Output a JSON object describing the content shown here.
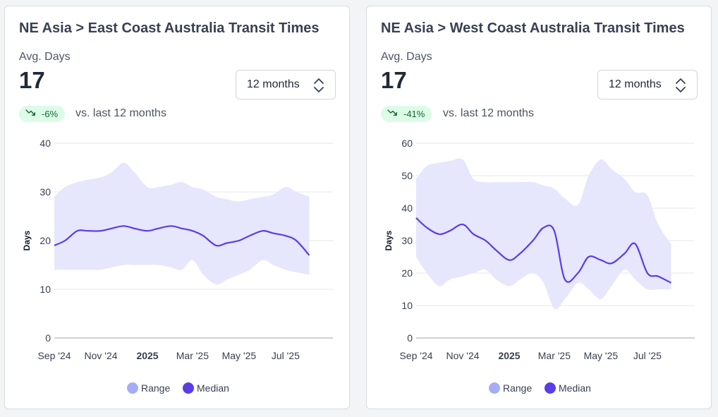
{
  "colors": {
    "range_fill": "#e6e6fd",
    "range_legend": "#a5adf8",
    "median": "#5b3ce6",
    "grid": "#e5e7eb",
    "badge_bg": "#dcfce7",
    "badge_text": "#166534"
  },
  "cards": [
    {
      "title": "NE Asia > East Coast Australia Transit Times",
      "metric_label": "Avg. Days",
      "metric_value": "17",
      "period_select": {
        "value": "12 months",
        "icon": "chevron-up-down-icon"
      },
      "change_badge": {
        "text": "-6%",
        "icon": "trending-down-icon"
      },
      "compare_text": "vs. last 12 months"
    },
    {
      "title": "NE Asia > West Coast Australia Transit Times",
      "metric_label": "Avg. Days",
      "metric_value": "17",
      "period_select": {
        "value": "12 months",
        "icon": "chevron-up-down-icon"
      },
      "change_badge": {
        "text": "-41%",
        "icon": "trending-down-icon"
      },
      "compare_text": "vs. last 12 months"
    }
  ],
  "chart_data": [
    {
      "type": "area",
      "ylabel": "Days",
      "ylim": [
        0,
        40
      ],
      "yticks": [
        0,
        10,
        20,
        30,
        40
      ],
      "xlim": [
        "2024-09-01",
        "2025-09-01"
      ],
      "xticks": [
        {
          "date": "2024-09-01",
          "label": "Sep '24",
          "bold": false
        },
        {
          "date": "2024-11-01",
          "label": "Nov '24",
          "bold": false
        },
        {
          "date": "2025-01-01",
          "label": "2025",
          "bold": true
        },
        {
          "date": "2025-03-01",
          "label": "Mar '25",
          "bold": false
        },
        {
          "date": "2025-05-01",
          "label": "May '25",
          "bold": false
        },
        {
          "date": "2025-07-01",
          "label": "Jul '25",
          "bold": false
        }
      ],
      "grid": true,
      "legend": {
        "position": "bottom",
        "entries": [
          "Range",
          "Median"
        ]
      },
      "x": [
        "2024-09-01",
        "2024-09-15",
        "2024-10-01",
        "2024-10-15",
        "2024-11-01",
        "2024-11-15",
        "2024-12-01",
        "2024-12-15",
        "2025-01-01",
        "2025-01-15",
        "2025-02-01",
        "2025-02-15",
        "2025-03-01",
        "2025-03-15",
        "2025-04-01",
        "2025-04-15",
        "2025-05-01",
        "2025-05-15",
        "2025-06-01",
        "2025-06-15",
        "2025-07-01",
        "2025-07-15",
        "2025-08-01"
      ],
      "series": [
        {
          "name": "Range",
          "type": "band",
          "low": [
            14,
            14,
            14,
            14,
            14,
            14.5,
            15,
            15,
            15,
            15,
            14.5,
            14,
            16,
            13,
            11,
            12,
            13,
            14,
            16,
            15,
            14,
            13.5,
            13
          ],
          "high": [
            29,
            31,
            32,
            32.5,
            33,
            34,
            36,
            34,
            31,
            31,
            31.5,
            32,
            31,
            30.5,
            29,
            28.5,
            28,
            28.5,
            29,
            29.5,
            31,
            30,
            29
          ]
        },
        {
          "name": "Median",
          "type": "line",
          "values": [
            19,
            20,
            22,
            22,
            22,
            22.5,
            23,
            22.5,
            22,
            22.5,
            23,
            22.5,
            22,
            21,
            19,
            19.5,
            20,
            21,
            22,
            21.5,
            21,
            20,
            17
          ]
        }
      ]
    },
    {
      "type": "area",
      "ylabel": "Days",
      "ylim": [
        0,
        60
      ],
      "yticks": [
        0,
        10,
        20,
        30,
        40,
        50,
        60
      ],
      "xlim": [
        "2024-09-01",
        "2025-09-01"
      ],
      "xticks": [
        {
          "date": "2024-09-01",
          "label": "Sep '24",
          "bold": false
        },
        {
          "date": "2024-11-01",
          "label": "Nov '24",
          "bold": false
        },
        {
          "date": "2025-01-01",
          "label": "2025",
          "bold": true
        },
        {
          "date": "2025-03-01",
          "label": "Mar '25",
          "bold": false
        },
        {
          "date": "2025-05-01",
          "label": "May '25",
          "bold": false
        },
        {
          "date": "2025-07-01",
          "label": "Jul '25",
          "bold": false
        }
      ],
      "grid": true,
      "legend": {
        "position": "bottom",
        "entries": [
          "Range",
          "Median"
        ]
      },
      "x": [
        "2024-09-01",
        "2024-09-15",
        "2024-10-01",
        "2024-10-15",
        "2024-11-01",
        "2024-11-15",
        "2024-12-01",
        "2024-12-15",
        "2025-01-01",
        "2025-01-15",
        "2025-02-01",
        "2025-02-15",
        "2025-03-01",
        "2025-03-15",
        "2025-04-01",
        "2025-04-15",
        "2025-05-01",
        "2025-05-15",
        "2025-06-01",
        "2025-06-15",
        "2025-07-01",
        "2025-07-15",
        "2025-08-01"
      ],
      "series": [
        {
          "name": "Range",
          "type": "band",
          "low": [
            25,
            20,
            16,
            18,
            19,
            20,
            21,
            18,
            16,
            18,
            20,
            17,
            9,
            12,
            17,
            15,
            12,
            16,
            21,
            18,
            15,
            15,
            15
          ],
          "high": [
            49,
            53,
            54,
            54.5,
            55,
            49,
            48,
            48,
            48,
            48,
            48,
            47,
            46,
            43,
            41,
            50,
            55,
            52,
            49,
            45,
            44,
            35,
            29
          ]
        },
        {
          "name": "Median",
          "type": "line",
          "values": [
            37,
            34,
            32,
            33,
            35,
            32,
            30,
            27,
            24,
            26,
            30,
            34,
            33,
            18,
            20,
            25,
            24,
            23,
            26,
            29,
            20,
            19,
            17
          ]
        }
      ]
    }
  ]
}
